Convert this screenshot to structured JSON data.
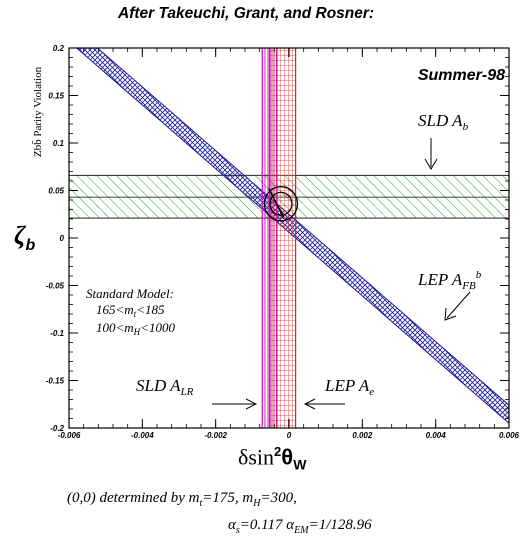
{
  "chart_data": {
    "type": "line",
    "title": "After Takeuchi, Grant, and Rosner:",
    "tag": "Summer-98",
    "xlabel_main": "δsin",
    "xlabel_sup": "2",
    "xlabel_theta": "θ",
    "xlabel_sub": "W",
    "ylabel_symbol": "ζ",
    "ylabel_sub": "b",
    "ylabel_rotated": "Zbb̄ Parity Violation",
    "xlim": [
      -0.006,
      0.006
    ],
    "ylim": [
      -0.2,
      0.2
    ],
    "x_ticks": [
      "-0.006",
      "-0.004",
      "-0.002",
      "0",
      "0.002",
      "0.004",
      "0.006"
    ],
    "y_ticks": [
      "0.2",
      "0.15",
      "0.1",
      "0.05",
      "0",
      "-0.05",
      "-0.1",
      "-0.15",
      "-0.2"
    ],
    "bands": [
      {
        "name": "SLD A_b",
        "orientation": "horizontal",
        "range": [
          0.021,
          0.066
        ],
        "center": 0.043,
        "color": "#22aa22",
        "hatch": "diagonal"
      },
      {
        "name": "LEP A_FB^b",
        "slope": -33.5,
        "intercept_range": [
          0.006,
          0.025
        ],
        "color": "#1a1a99",
        "hatch": "crosshatch"
      },
      {
        "name": "SLD A_LR",
        "orientation": "vertical",
        "range": [
          -0.00073,
          -0.00033
        ],
        "color": "#cc00cc",
        "hatch": "vertical"
      },
      {
        "name": "LEP A_e",
        "orientation": "vertical",
        "range": [
          -0.00053,
          0.00018
        ],
        "color": "#dd2222",
        "hatch": "grid"
      }
    ],
    "contours": [
      {
        "center": [
          -0.00022,
          0.036
        ],
        "rx": 0.0003,
        "ry": 0.012
      },
      {
        "center": [
          -0.00022,
          0.036
        ],
        "rx": 0.00045,
        "ry": 0.018
      }
    ],
    "sm_segment": {
      "x": [
        -0.00055,
        -0.00015
      ],
      "y": [
        0.052,
        0.022
      ]
    },
    "labels": {
      "sld_ab": "SLD A",
      "sld_ab_sub": "b",
      "lep_afb": "LEP A",
      "lep_afb_sub": "FB",
      "lep_afb_sup": "b",
      "sld_alr": "SLD A",
      "sld_alr_sub": "LR",
      "lep_ae": "LEP A",
      "lep_ae_sub": "e",
      "sm_title": "Standard Model:",
      "sm_mt_a": "165<m",
      "sm_mt_sub": "t",
      "sm_mt_b": "<185",
      "sm_mh_a": "100<m",
      "sm_mh_sub": "H",
      "sm_mh_b": "<1000"
    }
  },
  "footnote": {
    "line1_a": "(0,0) determined by m",
    "line1_sub1": "t",
    "line1_b": "=175, m",
    "line1_sub2": "H",
    "line1_c": "=300,",
    "line2_a": "α",
    "line2_sub1": "s",
    "line2_b": "=0.117 α",
    "line2_sub2": "EM",
    "line2_c": "=1/128.96"
  }
}
